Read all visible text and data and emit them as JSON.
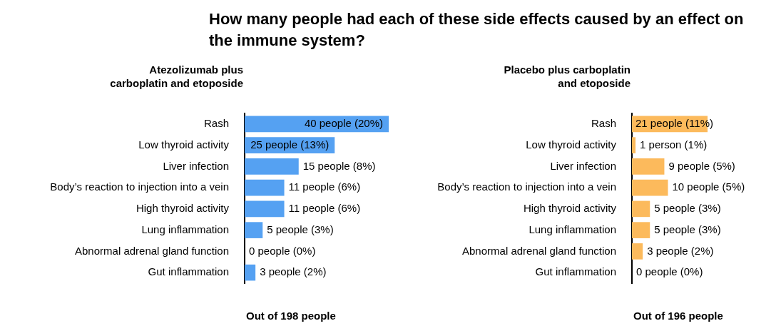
{
  "chart_data": [
    {
      "type": "bar",
      "orientation": "horizontal",
      "title": "How many people had each of these side effects caused by an effect on the immune system?",
      "subtitle": "Atezolizumab plus carboplatin and etoposide",
      "xlabel": "Out of 198 people",
      "tick_labels": "y",
      "color": "#55a1f2",
      "categories": [
        "Rash",
        "Low thyroid activity",
        "Liver infection",
        "Body’s reaction to injection into a vein",
        "High thyroid activity",
        "Lung inflammation",
        "Abnormal adrenal gland function",
        "Gut inflammation"
      ],
      "values": [
        40,
        25,
        15,
        11,
        11,
        5,
        0,
        3
      ],
      "value_labels": [
        "40 people (20%)",
        "25 people (13%)",
        "15 people (8%)",
        "11 people (6%)",
        "11 people (6%)",
        "5 people (3%)",
        "0 people (0%)",
        "3 people (2%)"
      ]
    },
    {
      "type": "bar",
      "orientation": "horizontal",
      "subtitle": "Placebo plus carboplatin and etoposide",
      "xlabel": "Out of 196 people",
      "tick_labels": "y",
      "color": "#fcba5c",
      "categories": [
        "Rash",
        "Low thyroid activity",
        "Liver infection",
        "Body’s reaction to injection into a vein",
        "High thyroid activity",
        "Lung inflammation",
        "Abnormal adrenal gland function",
        "Gut inflammation"
      ],
      "values": [
        21,
        1,
        9,
        10,
        5,
        5,
        3,
        0
      ],
      "value_labels": [
        "21 people (11%)",
        "1 person (1%)",
        "9 people (5%)",
        "10 people (5%)",
        "5 people (3%)",
        "5 people (3%)",
        "3 people (2%)",
        "0 people (0%)"
      ]
    }
  ]
}
